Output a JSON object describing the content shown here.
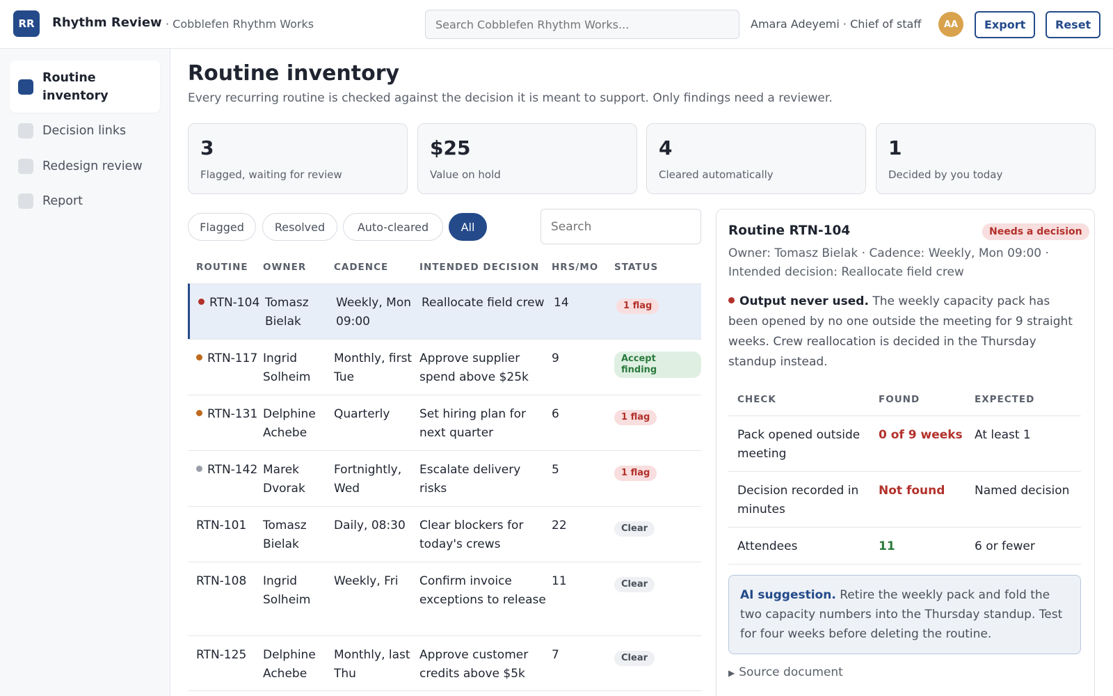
{
  "app": {
    "logo": "RR",
    "title": "Rhythm Review",
    "org": "· Cobblefen Rhythm Works",
    "search_placeholder": "Search Cobblefen Rhythm Works...",
    "user": "Amara Adeyemi · Chief of staff",
    "avatar": "AA",
    "export_label": "Export",
    "reset_label": "Reset"
  },
  "sidebar": {
    "items": [
      {
        "label": "Routine inventory",
        "active": true
      },
      {
        "label": "Decision links",
        "active": false
      },
      {
        "label": "Redesign review",
        "active": false
      },
      {
        "label": "Report",
        "active": false
      }
    ]
  },
  "main": {
    "title": "Routine inventory",
    "subtitle": "Every recurring routine is checked against the decision it is meant to support. Only findings need a reviewer.",
    "stats": [
      {
        "value": "3",
        "label": "Flagged, waiting for review"
      },
      {
        "value": "$25",
        "label": "Value on hold"
      },
      {
        "value": "4",
        "label": "Cleared automatically"
      },
      {
        "value": "1",
        "label": "Decided by you today"
      }
    ],
    "filters": [
      "Flagged",
      "Resolved",
      "Auto-cleared",
      "All"
    ],
    "active_filter": "All",
    "table_search_placeholder": "Search"
  },
  "table": {
    "headers": [
      "ROUTINE",
      "OWNER",
      "CADENCE",
      "INTENDED DECISION",
      "HRS/MO",
      "STATUS"
    ],
    "rows": [
      {
        "routine": "RTN-104",
        "owner": "Tomasz Bielak",
        "cadence": "Weekly, Mon 09:00",
        "decision": "Reallocate field crew",
        "hrs": "14",
        "status": "1 flag",
        "status_type": "flag",
        "dot": "#b3312b",
        "selected": true
      },
      {
        "routine": "RTN-117",
        "owner": "Ingrid Solheim",
        "cadence": "Monthly, first Tue",
        "decision": "Approve supplier spend above $25k",
        "hrs": "9",
        "status": "Accept finding",
        "status_type": "accept",
        "dot": "#c06a1e",
        "selected": false
      },
      {
        "routine": "RTN-131",
        "owner": "Delphine Achebe",
        "cadence": "Quarterly",
        "decision": "Set hiring plan for next quarter",
        "hrs": "6",
        "status": "1 flag",
        "status_type": "flag",
        "dot": "#c06a1e",
        "selected": false
      },
      {
        "routine": "RTN-142",
        "owner": "Marek Dvorak",
        "cadence": "Fortnightly, Wed",
        "decision": "Escalate delivery risks",
        "hrs": "5",
        "status": "1 flag",
        "status_type": "flag",
        "dot": "#9a9ea8",
        "selected": false
      },
      {
        "routine": "RTN-101",
        "owner": "Tomasz Bielak",
        "cadence": "Daily, 08:30",
        "decision": "Clear blockers for today's crews",
        "hrs": "22",
        "status": "Clear",
        "status_type": "clear",
        "dot": "",
        "selected": false
      },
      {
        "routine": "RTN-108",
        "owner": "Ingrid Solheim",
        "cadence": "Weekly, Fri",
        "decision": "Confirm invoice exceptions to release",
        "hrs": "11",
        "status": "Clear",
        "status_type": "clear",
        "dot": "",
        "selected": false
      },
      {
        "routine": "RTN-125",
        "owner": "Delphine Achebe",
        "cadence": "Monthly, last Thu",
        "decision": "Approve customer credits above $5k",
        "hrs": "7",
        "status": "Clear",
        "status_type": "clear",
        "dot": "",
        "selected": false
      }
    ]
  },
  "detail": {
    "title": "Routine RTN-104",
    "badge": "Needs a decision",
    "meta": "Owner: Tomasz Bielak · Cadence: Weekly, Mon 09:00 · Intended decision: Reallocate field crew",
    "finding_title": "Output never used.",
    "finding_text": "The weekly capacity pack has been opened by no one outside the meeting for 9 straight weeks. Crew reallocation is decided in the Thursday standup instead.",
    "check_headers": [
      "CHECK",
      "FOUND",
      "EXPECTED"
    ],
    "checks": [
      {
        "check": "Pack opened outside meeting",
        "found": "0 of 9 weeks",
        "found_color": "red",
        "expected": "At least 1"
      },
      {
        "check": "Decision recorded in minutes",
        "found": "Not found",
        "found_color": "red",
        "expected": "Named decision"
      },
      {
        "check": "Attendees",
        "found": "11",
        "found_color": "green",
        "expected": "6 or fewer"
      }
    ],
    "ai_label": "AI suggestion.",
    "ai_text": "Retire the weekly pack and fold the two capacity numbers into the Thursday standup. Test for four weeks before deleting the routine.",
    "source_label": "Source document"
  }
}
